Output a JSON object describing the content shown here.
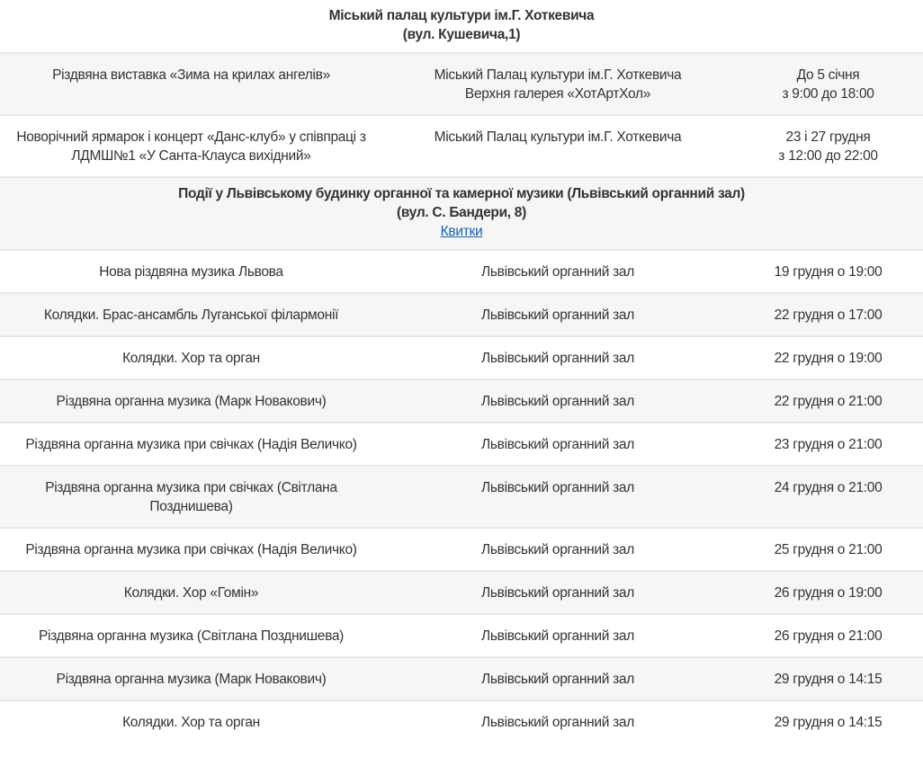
{
  "venue1": {
    "title": "Міський палац культури ім.Г. Хоткевича",
    "address": "(вул. Кушевича,1)"
  },
  "venue1_rows": [
    {
      "event": "Різдвяна виставка «Зима на крилах ангелів»",
      "place": "Міський Палац культури ім.Г. Хоткевича",
      "place2": "Верхня галерея «ХотАртХол»",
      "date": "До 5 січня",
      "time": "з 9:00 до 18:00"
    },
    {
      "event": "Новорічний ярмарок і концерт «Данс-клуб» у співпраці з ЛДМШ№1 «У Санта-Клауса вихідний»",
      "place": "Міський Палац культури ім.Г. Хоткевича",
      "place2": "",
      "date": "23 і 27 грудня",
      "time": "з 12:00 до 22:00"
    }
  ],
  "venue2": {
    "title": "Події у Львівському будинку органної та камерної музики (Львівський органний зал)",
    "address": "(вул. С. Бандери, 8)",
    "tickets_link": "Квитки"
  },
  "venue2_rows": [
    {
      "event": "Нова різдвяна музика Львова",
      "place": "Львівський органний зал",
      "date": "19 грудня о 19:00"
    },
    {
      "event": "Колядки. Брас-ансамбль Луганської філармонії",
      "place": "Львівський органний зал",
      "date": "22 грудня о 17:00"
    },
    {
      "event": "Колядки. Хор та орган",
      "place": "Львівський органний зал",
      "date": "22 грудня о 19:00"
    },
    {
      "event": "Різдвяна органна музика (Марк Новакович)",
      "place": "Львівський органний зал",
      "date": "22 грудня о 21:00"
    },
    {
      "event": "Різдвяна органна музика при свічках (Надія Величко)",
      "place": "Львівський органний зал",
      "date": "23 грудня о 21:00"
    },
    {
      "event": "Різдвяна органна музика при свічках (Світлана Позднишева)",
      "place": "Львівський органний зал",
      "date": "24 грудня о 21:00"
    },
    {
      "event": "Різдвяна органна музика при свічках (Надія Величко)",
      "place": "Львівський органний зал",
      "date": "25 грудня о 21:00"
    },
    {
      "event": "Колядки. Хор «Гомін»",
      "place": "Львівський органний зал",
      "date": "26 грудня о 19:00"
    },
    {
      "event": "Різдвяна органна музика (Світлана Позднишева)",
      "place": "Львівський органний зал",
      "date": "26 грудня о 21:00"
    },
    {
      "event": "Різдвяна органна музика (Марк Новакович)",
      "place": "Львівський органний зал",
      "date": "29 грудня о 14:15"
    },
    {
      "event": "Колядки. Хор та орган",
      "place": "Львівський органний зал",
      "date": "29 грудня о 14:15"
    }
  ]
}
